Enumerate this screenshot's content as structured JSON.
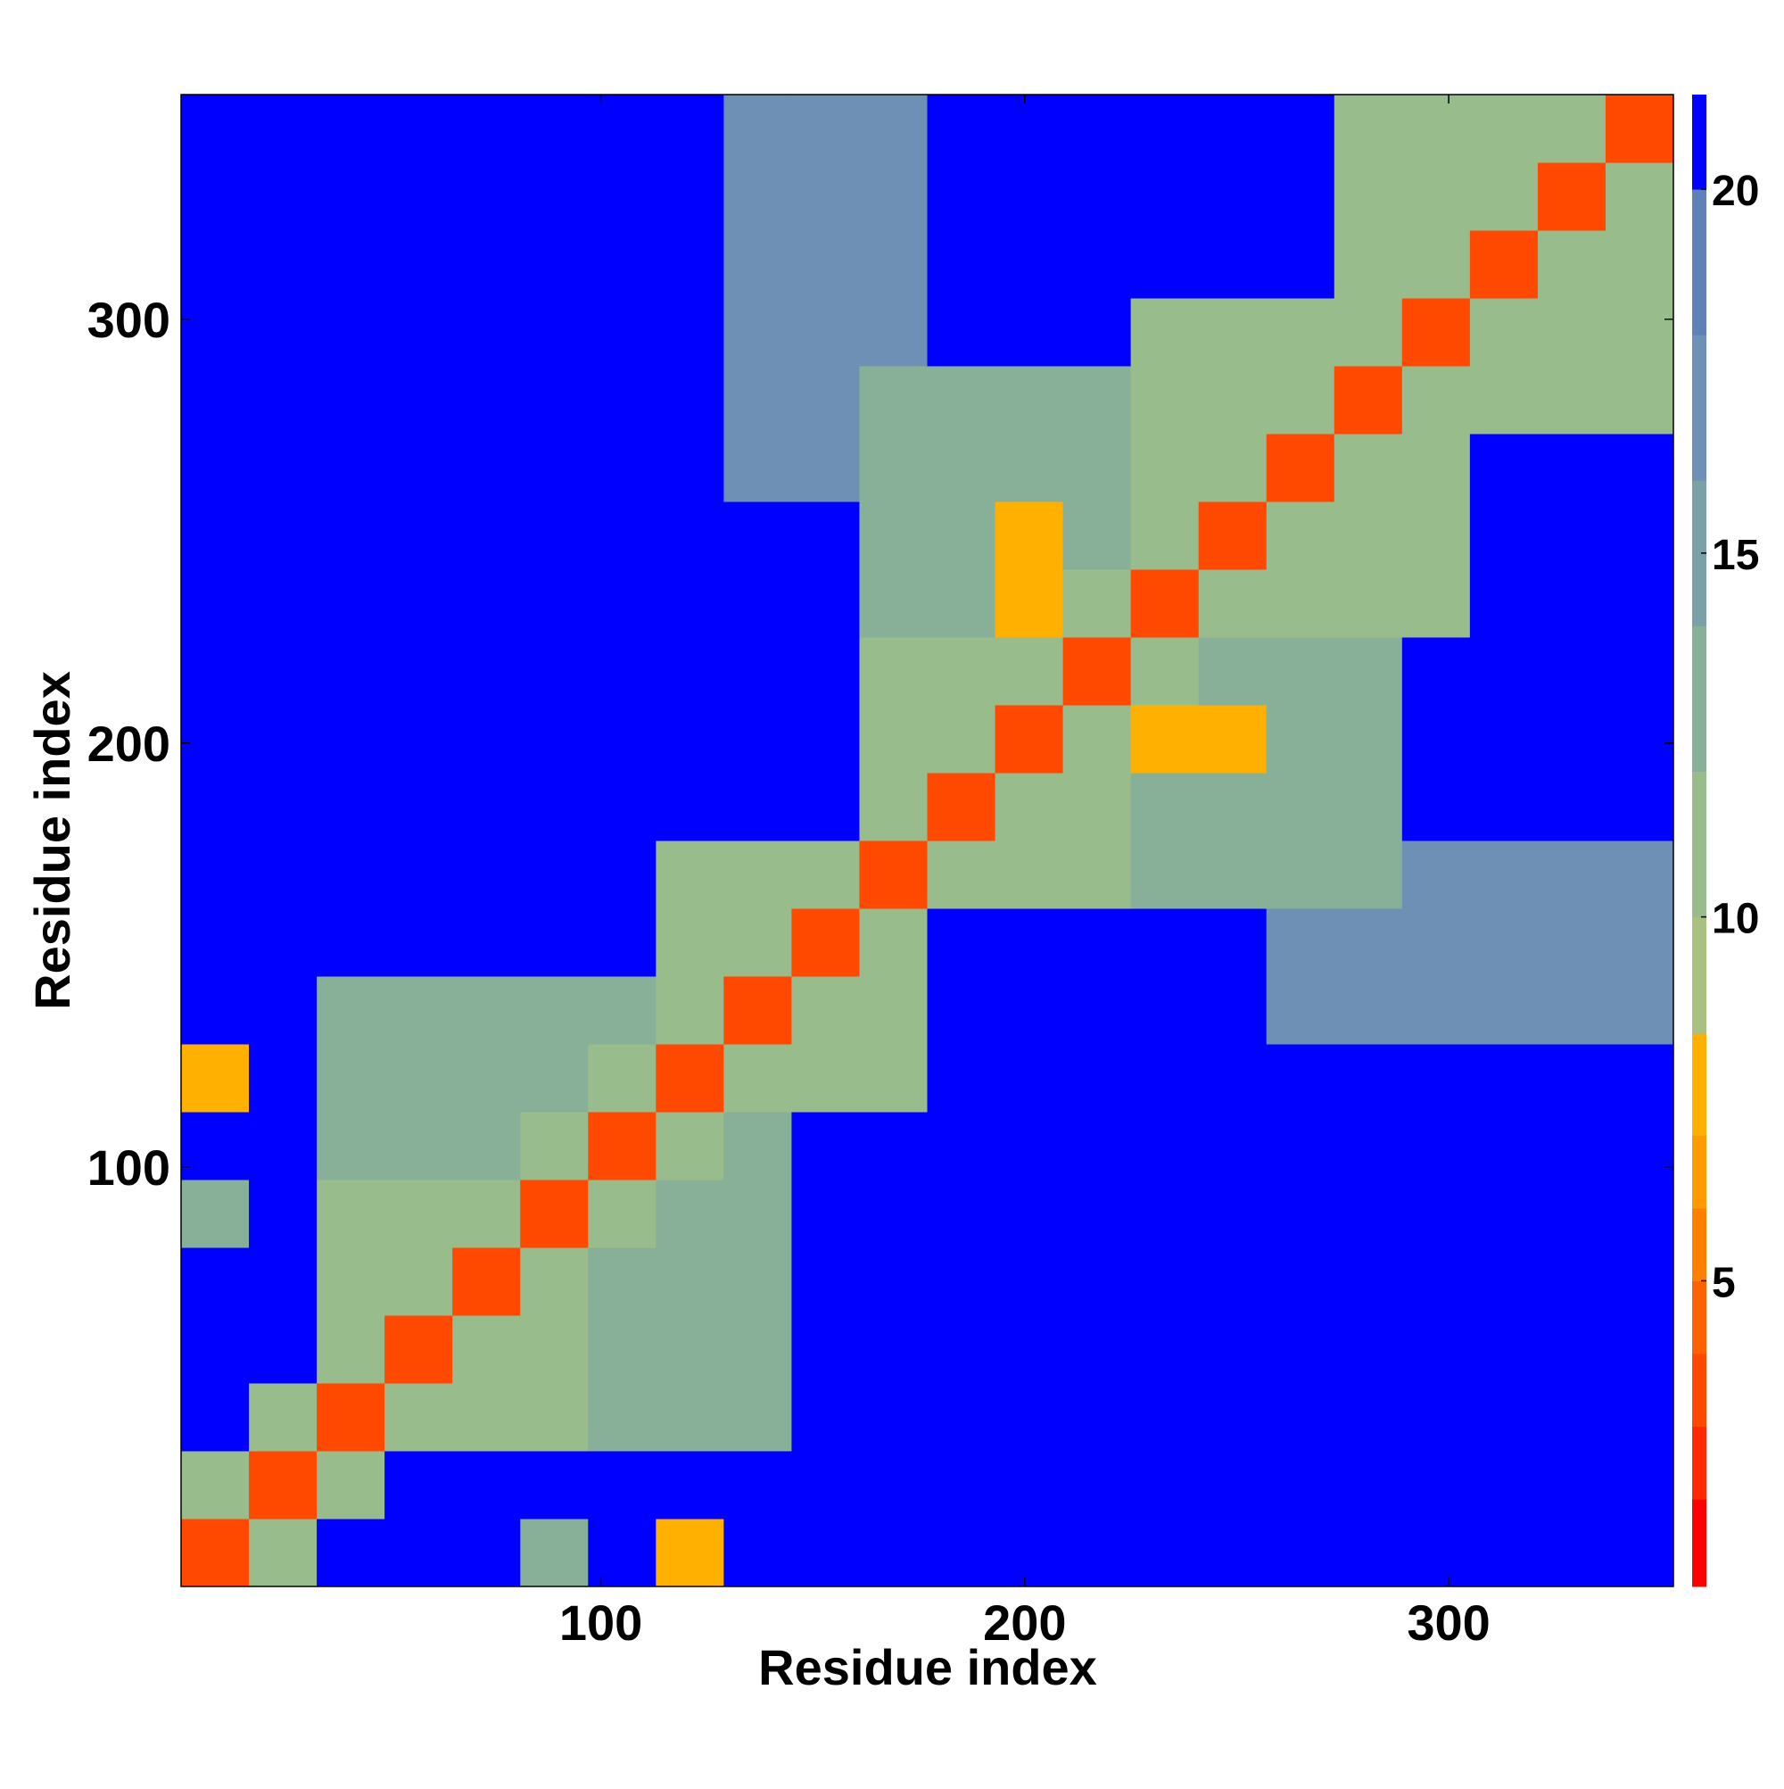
{
  "chart_data": {
    "type": "heatmap",
    "x_label": "Residue index",
    "y_label": "Residue index",
    "bins": [
      1,
      17,
      33,
      49,
      65,
      81,
      97,
      113,
      129,
      145,
      161,
      177,
      193,
      209,
      225,
      241,
      257,
      273,
      289,
      305,
      321,
      337,
      353
    ],
    "xlim": [
      1,
      353
    ],
    "ylim": [
      1,
      353
    ],
    "xticks": [
      100,
      200,
      300
    ],
    "yticks": [
      100,
      200,
      300
    ],
    "clim": [
      0.8,
      21.3
    ],
    "cticks": [
      5,
      10,
      15,
      20
    ],
    "colorscale": [
      {
        "value": 2,
        "color": "#ff0000"
      },
      {
        "value": 3,
        "color": "#ff2a00"
      },
      {
        "value": 4,
        "color": "#ff4800"
      },
      {
        "value": 5,
        "color": "#ff6000"
      },
      {
        "value": 6,
        "color": "#ff8000"
      },
      {
        "value": 7,
        "color": "#ff9a00"
      },
      {
        "value": 8.4,
        "color": "#ffb000"
      },
      {
        "value": 10,
        "color": "#a8c080"
      },
      {
        "value": 12,
        "color": "#98bc8c"
      },
      {
        "value": 14,
        "color": "#88b098"
      },
      {
        "value": 16,
        "color": "#7ca0a8"
      },
      {
        "value": 18,
        "color": "#6e90b4"
      },
      {
        "value": 20,
        "color": "#6080b8"
      },
      {
        "value": 21.3,
        "color": "#0000ff"
      }
    ],
    "z": [
      [
        4,
        11,
        21,
        21,
        21,
        14,
        21,
        8,
        21,
        21,
        21,
        21,
        21,
        21,
        21,
        21,
        21,
        21,
        21,
        21,
        21,
        21
      ],
      [
        11,
        4,
        11,
        21,
        21,
        21,
        21,
        21,
        21,
        21,
        21,
        21,
        21,
        21,
        21,
        21,
        21,
        21,
        21,
        21,
        21,
        21
      ],
      [
        21,
        11,
        4,
        11,
        12,
        12,
        13,
        13,
        13,
        21,
        21,
        21,
        21,
        21,
        21,
        21,
        21,
        21,
        21,
        21,
        21,
        21
      ],
      [
        21,
        21,
        11,
        4,
        11,
        12,
        13,
        13,
        13,
        21,
        21,
        21,
        21,
        21,
        21,
        21,
        21,
        21,
        21,
        21,
        21,
        21
      ],
      [
        21,
        21,
        12,
        11,
        4,
        11,
        13,
        13,
        13,
        21,
        21,
        21,
        21,
        21,
        21,
        21,
        21,
        21,
        21,
        21,
        21,
        21
      ],
      [
        14,
        21,
        12,
        12,
        11,
        4,
        11,
        13,
        13,
        21,
        21,
        21,
        21,
        21,
        21,
        21,
        21,
        21,
        21,
        21,
        21,
        21
      ],
      [
        21,
        21,
        13,
        13,
        13,
        11,
        4,
        11,
        13,
        21,
        21,
        21,
        21,
        21,
        21,
        21,
        21,
        21,
        21,
        21,
        21,
        21
      ],
      [
        8,
        21,
        13,
        13,
        13,
        13,
        11,
        4,
        11,
        12,
        12,
        21,
        21,
        21,
        21,
        21,
        21,
        21,
        21,
        21,
        21,
        21
      ],
      [
        21,
        21,
        13,
        13,
        13,
        13,
        13,
        11,
        4,
        11,
        12,
        21,
        21,
        21,
        21,
        21,
        18,
        18,
        18,
        18,
        18,
        18
      ],
      [
        21,
        21,
        21,
        21,
        21,
        21,
        21,
        12,
        11,
        4,
        11,
        21,
        21,
        21,
        21,
        21,
        18,
        18,
        18,
        18,
        18,
        18
      ],
      [
        21,
        21,
        21,
        21,
        21,
        21,
        21,
        12,
        12,
        11,
        4,
        11,
        12,
        12,
        13,
        13,
        13,
        13,
        18,
        18,
        18,
        18
      ],
      [
        21,
        21,
        21,
        21,
        21,
        21,
        21,
        21,
        21,
        21,
        11,
        4,
        11,
        12,
        13,
        13,
        13,
        13,
        21,
        21,
        21,
        21
      ],
      [
        21,
        21,
        21,
        21,
        21,
        21,
        21,
        21,
        21,
        21,
        12,
        11,
        4,
        11,
        8,
        8,
        13,
        13,
        21,
        21,
        21,
        21
      ],
      [
        21,
        21,
        21,
        21,
        21,
        21,
        21,
        21,
        21,
        21,
        12,
        12,
        11,
        4,
        11,
        13,
        13,
        13,
        21,
        21,
        21,
        21
      ],
      [
        21,
        21,
        21,
        21,
        21,
        21,
        21,
        21,
        21,
        21,
        13,
        13,
        8,
        11,
        4,
        11,
        12,
        12,
        12,
        21,
        21,
        21
      ],
      [
        21,
        21,
        21,
        21,
        21,
        21,
        21,
        21,
        21,
        21,
        13,
        13,
        8,
        13,
        11,
        4,
        11,
        12,
        12,
        21,
        21,
        21
      ],
      [
        21,
        21,
        21,
        21,
        21,
        21,
        21,
        21,
        18,
        18,
        13,
        13,
        13,
        13,
        12,
        11,
        4,
        11,
        12,
        21,
        21,
        21
      ],
      [
        21,
        21,
        21,
        21,
        21,
        21,
        21,
        21,
        18,
        18,
        13,
        13,
        13,
        13,
        12,
        12,
        11,
        4,
        11,
        12,
        12,
        12
      ],
      [
        21,
        21,
        21,
        21,
        21,
        21,
        21,
        21,
        18,
        18,
        18,
        21,
        21,
        21,
        12,
        12,
        12,
        11,
        4,
        11,
        12,
        12
      ],
      [
        21,
        21,
        21,
        21,
        21,
        21,
        21,
        21,
        18,
        18,
        18,
        21,
        21,
        21,
        21,
        21,
        21,
        12,
        11,
        4,
        11,
        12
      ],
      [
        21,
        21,
        21,
        21,
        21,
        21,
        21,
        21,
        18,
        18,
        18,
        21,
        21,
        21,
        21,
        21,
        21,
        12,
        12,
        11,
        4,
        11
      ],
      [
        21,
        21,
        21,
        21,
        21,
        21,
        21,
        21,
        18,
        18,
        18,
        21,
        21,
        21,
        21,
        21,
        21,
        12,
        12,
        12,
        11,
        4
      ]
    ]
  }
}
